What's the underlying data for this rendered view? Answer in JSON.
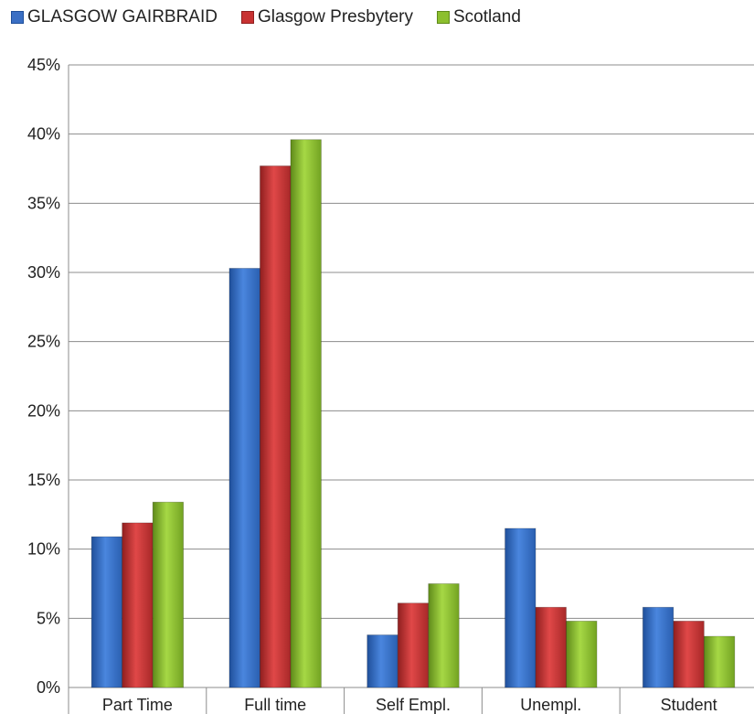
{
  "chart_data": {
    "type": "bar",
    "title": "",
    "xlabel": "",
    "ylabel": "",
    "ylim": [
      0,
      45
    ],
    "y_tick_step": 5,
    "y_tick_suffix": "%",
    "grid": true,
    "legend_position": "top",
    "categories": [
      "Part Time",
      "Full time",
      "Self Empl.",
      "Unempl.",
      "Student"
    ],
    "series": [
      {
        "name": "GLASGOW GAIRBRAID",
        "color": "#3a6fc4",
        "values": [
          10.9,
          30.3,
          3.8,
          11.5,
          5.8
        ]
      },
      {
        "name": "Glasgow Presbytery",
        "color": "#c83232",
        "values": [
          11.9,
          37.7,
          6.1,
          5.8,
          4.8
        ]
      },
      {
        "name": "Scotland",
        "color": "#8cbf2e",
        "values": [
          13.4,
          39.6,
          7.5,
          4.8,
          3.7
        ]
      }
    ]
  }
}
